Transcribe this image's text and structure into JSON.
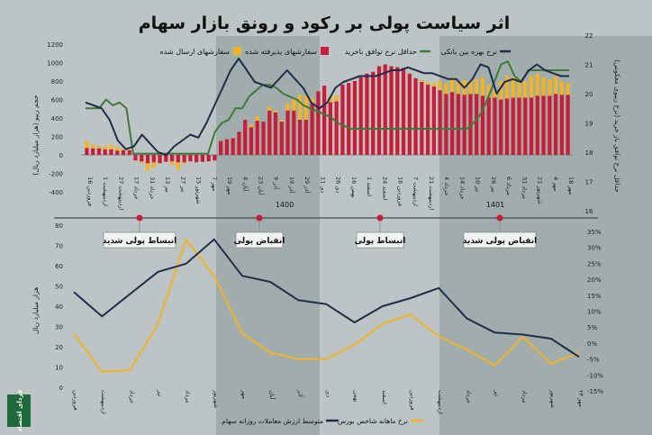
{
  "title": "اثر سیاست پولی بر رکود و رونق بازار سهام",
  "colors": {
    "background": "#bcc4c6",
    "shade": "#8f9c9d",
    "navy": "#1f2d4a",
    "green": "#3f7a3a",
    "red": "#c51d3b",
    "gold": "#f0b429",
    "orange": "#f0b429",
    "marker": "#c51d3b",
    "axis": "#2a2a2a"
  },
  "logo": "فردای اقتصاد",
  "phases": [
    "انبساط پولی شدید",
    "انقباض پولی",
    "انبساط پولی",
    "انقباض پولی شدید"
  ],
  "chart_data": [
    {
      "type": "bar",
      "legend": [
        "سفارشهای ارسال شده",
        "سفارشهای پذیرفته شده",
        "حداقل نرخ توافق باخرید",
        "نرخ بهره بین بانکی"
      ],
      "ylabel_left": "حجم ریپو (هزار میلیارد ریال)",
      "ylabel_right": "حداقل نرخ توافق باز خرید (نرخ ریپوی معکوس)",
      "left_ticks": [
        "1200",
        "1000",
        "800",
        "600",
        "400",
        "200",
        "0",
        "-200",
        "-400"
      ],
      "right_ticks": [
        "22",
        "21",
        "20",
        "19",
        "18",
        "17",
        "16"
      ],
      "ylim_left": [
        -400,
        1200
      ],
      "ylim_right": [
        16,
        22
      ],
      "year_labels": [
        "1400",
        "1401"
      ],
      "x_labels": [
        "16 فروردین",
        "1 اردیبهشت",
        "27 اردیبهشت",
        "17 خرداد",
        "31 خرداد",
        "13 تیر",
        "27 تیر",
        "15 شهریور",
        "7 مهر",
        "19 مهر",
        "4 آبان",
        "23 آبان",
        "9 آذر",
        "19 آذر",
        "29 آذر",
        "11 دی",
        "26 دی",
        "16 بهمن",
        "1 اسفند",
        "24 اسفند",
        "16 فروردین",
        "7 اردیبهشت",
        "21 اردیبهشت",
        "4 خرداد",
        "14 خرداد",
        "10 تیر",
        "26 تیر",
        "6 مرداد",
        "31 مرداد",
        "21 شهریور",
        "4 مهر",
        "18 مهر"
      ],
      "sent_orders": [
        150,
        115,
        100,
        95,
        110,
        90,
        70,
        55,
        -20,
        -90,
        -170,
        -140,
        -90,
        -20,
        -110,
        -160,
        -100,
        -60,
        -10,
        -30,
        -40,
        -5,
        120,
        170,
        180,
        240,
        300,
        330,
        420,
        320,
        520,
        480,
        380,
        560,
        600,
        650,
        640,
        610,
        600,
        590,
        640,
        650,
        700,
        720,
        740,
        760,
        820,
        880,
        960,
        980,
        960,
        950,
        940,
        880,
        830,
        810,
        790,
        780,
        800,
        780,
        820,
        800,
        810,
        800,
        820,
        840,
        760,
        700,
        800,
        860,
        840,
        830,
        800,
        860,
        880,
        840,
        820,
        850,
        800,
        780
      ],
      "accepted_orders": [
        75,
        70,
        70,
        60,
        60,
        45,
        50,
        50,
        -60,
        -70,
        -90,
        -80,
        -90,
        -75,
        -70,
        -80,
        -80,
        -70,
        -80,
        -75,
        -70,
        -60,
        150,
        170,
        180,
        250,
        380,
        300,
        370,
        360,
        480,
        460,
        360,
        480,
        480,
        380,
        380,
        560,
        690,
        750,
        570,
        580,
        760,
        780,
        800,
        840,
        880,
        900,
        960,
        980,
        960,
        950,
        940,
        880,
        830,
        790,
        760,
        740,
        700,
        660,
        680,
        660,
        650,
        660,
        660,
        640,
        620,
        620,
        600,
        610,
        620,
        620,
        620,
        620,
        640,
        640,
        640,
        660,
        650,
        650
      ],
      "min_repo_rate": [
        19.5,
        19.5,
        19.5,
        19.8,
        19.6,
        19.7,
        19.5,
        17.95,
        17.95,
        17.95,
        17.95,
        17.95,
        17.95,
        17.95,
        17.95,
        17.95,
        17.95,
        17.95,
        17.95,
        18.7,
        19.0,
        19.1,
        19.5,
        19.5,
        19.9,
        20.1,
        20.3,
        20.3,
        20.2,
        20.0,
        19.9,
        19.8,
        19.6,
        19.5,
        19.4,
        19.3,
        19.2,
        19.0,
        18.9,
        18.8,
        18.8,
        18.8,
        18.8,
        18.8,
        18.8,
        18.8,
        18.8,
        18.8,
        18.8,
        18.8,
        18.8,
        18.8,
        18.8,
        18.8,
        18.8,
        18.8,
        18.8,
        19.0,
        19.3,
        19.8,
        20.4,
        21.0,
        21.1,
        20.6,
        20.4,
        20.8,
        20.8,
        20.8,
        20.8,
        20.8,
        20.8,
        20.8
      ],
      "interbank_rate": [
        19.7,
        19.6,
        19.5,
        19.1,
        18.4,
        18.1,
        18.2,
        18.6,
        18.3,
        18.0,
        17.9,
        18.2,
        18.4,
        18.6,
        18.5,
        19.0,
        19.6,
        20.2,
        20.8,
        21.2,
        20.8,
        20.4,
        20.3,
        20.2,
        20.5,
        20.8,
        20.5,
        20.2,
        19.7,
        19.5,
        19.7,
        20.2,
        20.4,
        20.5,
        20.6,
        20.6,
        20.6,
        20.7,
        20.8,
        20.8,
        20.9,
        20.8,
        20.7,
        20.7,
        20.6,
        20.5,
        20.5,
        20.2,
        20.5,
        21.0,
        20.9,
        20.0,
        20.4,
        20.5,
        20.4,
        20.8,
        21.0,
        20.8,
        20.7,
        20.6,
        20.6
      ]
    },
    {
      "type": "line",
      "legend": [
        "متوسط ارزش معاملات روزانه سهام",
        "نرخ ماهانه شاخص بورس"
      ],
      "ylabel_left": "هزار میلیارد ریال",
      "left_ticks": [
        "80",
        "70",
        "60",
        "50",
        "40",
        "30",
        "20",
        "10",
        "0"
      ],
      "right_ticks": [
        "35%",
        "30%",
        "25%",
        "20%",
        "15%",
        "10%",
        "5%",
        "0%",
        "-5%",
        "-10%",
        "-15%"
      ],
      "ylim_left": [
        0,
        80
      ],
      "ylim_right": [
        -15,
        35
      ],
      "categories": [
        "فروردین",
        "اردیبهشت",
        "خرداد",
        "تیر",
        "مرداد",
        "شهریور",
        "مهر",
        "آبان",
        "آذر",
        "دی",
        "بهمن",
        "اسفند",
        "فروردین",
        "اردیبهشت",
        "خرداد",
        "تیر",
        "مرداد",
        "شهریور",
        "مهر ۲۳"
      ],
      "avg_daily_trade_value": [
        47,
        35,
        46,
        57,
        61,
        73,
        55,
        52,
        43,
        41,
        32,
        40,
        44,
        49,
        34,
        27,
        26,
        24,
        15
      ],
      "index_monthly_return": [
        3,
        -9,
        -8.5,
        6,
        32.5,
        21,
        3,
        -3,
        -5,
        -5,
        -0.5,
        6,
        9,
        2,
        -2,
        -7,
        2,
        -6.5,
        -3
      ]
    }
  ]
}
